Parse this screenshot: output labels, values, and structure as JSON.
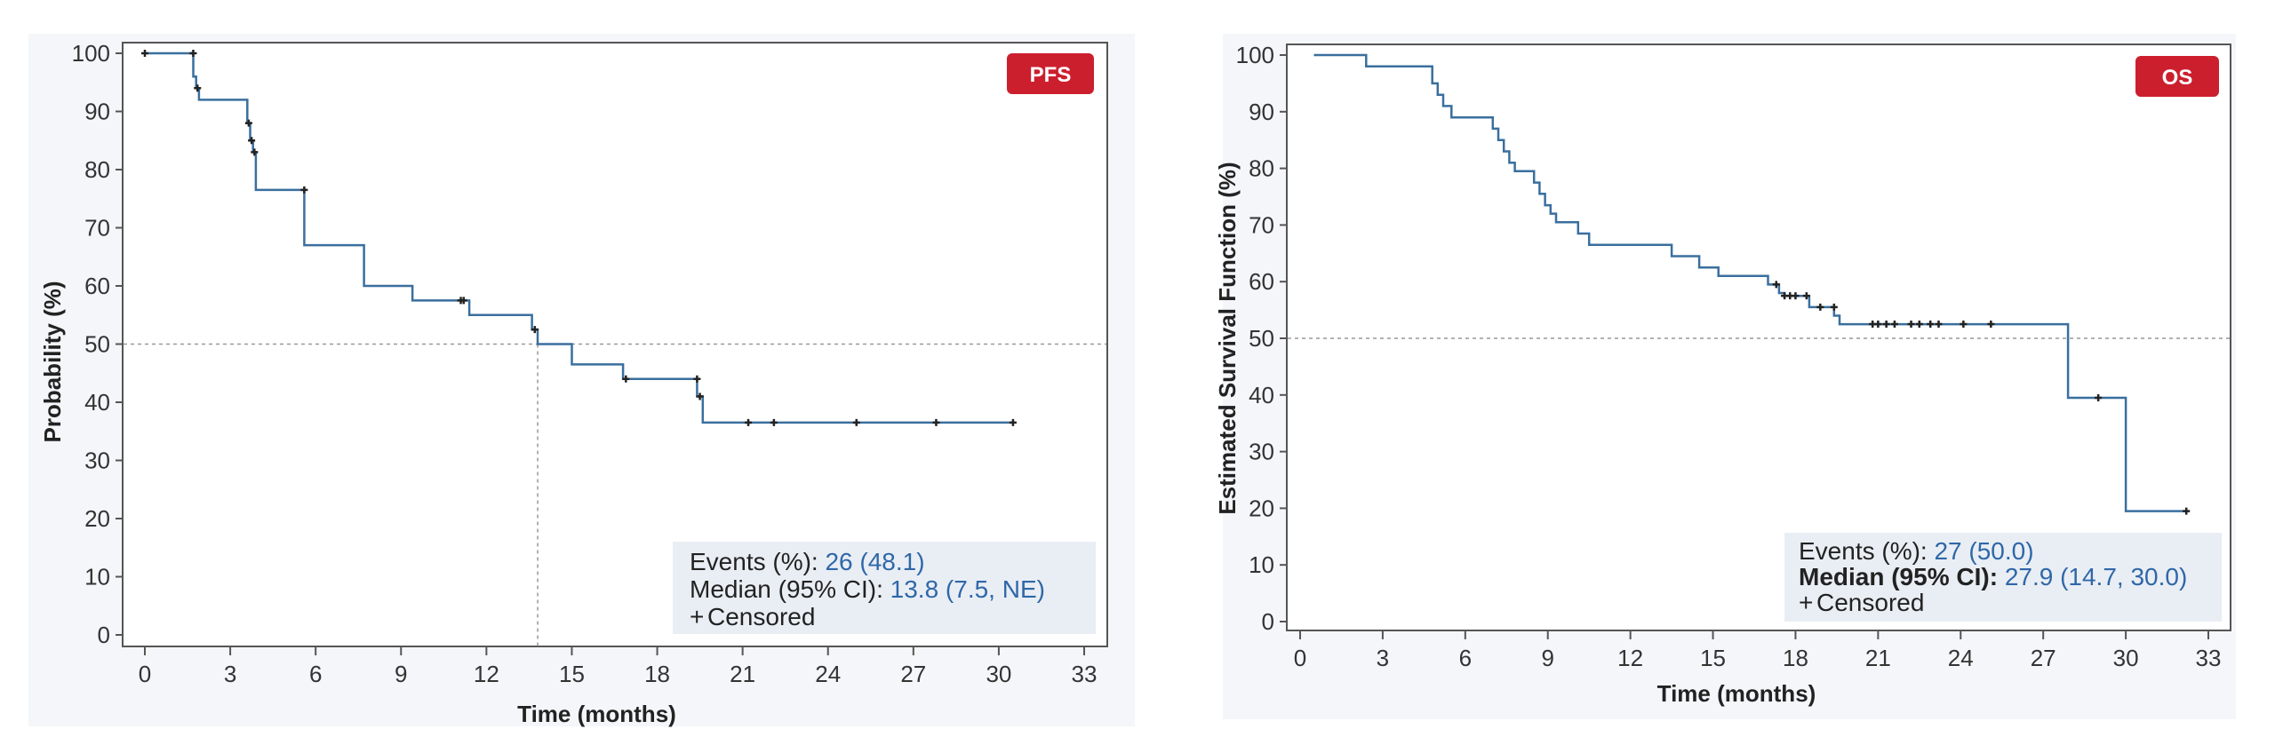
{
  "charts": [
    {
      "badge": "PFS",
      "events_label": "Events (%): ",
      "events_value": "26 (48.1)",
      "median_label": "Median (95% CI): ",
      "median_value": "13.8 (7.5, NE)",
      "censored_label": "Censored"
    },
    {
      "badge": "OS",
      "events_label": "Events (%): ",
      "events_value": "27 (50.0)",
      "median_label": "Median (95% CI): ",
      "median_value": "27.9 (14.7, 30.0)",
      "censored_label": "Censored"
    }
  ],
  "colors": {
    "curve": "#3a6f9e",
    "badge": "#cc1f2e",
    "panel_bg": "#f4f6f9",
    "legend_bg": "#e9eef4",
    "value_text": "#2f67a8"
  },
  "chart_data": [
    {
      "type": "line",
      "title": "",
      "xlabel": "Time (months)",
      "ylabel": "Probability (%)",
      "xlim": [
        0,
        33
      ],
      "ylim": [
        0,
        100
      ],
      "xticks": [
        0,
        3,
        6,
        9,
        12,
        15,
        18,
        21,
        24,
        27,
        30,
        33
      ],
      "yticks": [
        0,
        10,
        20,
        30,
        40,
        50,
        60,
        70,
        80,
        90,
        100
      ],
      "grid": false,
      "legend_position": "bottom-right",
      "reference_y": 50,
      "median_x": 13.8,
      "series": [
        {
          "steps": [
            [
              0,
              100
            ],
            [
              1.7,
              100
            ],
            [
              1.7,
              96
            ],
            [
              1.8,
              96
            ],
            [
              1.8,
              94
            ],
            [
              1.9,
              94
            ],
            [
              1.9,
              92
            ],
            [
              3.6,
              92
            ],
            [
              3.6,
              88
            ],
            [
              3.7,
              88
            ],
            [
              3.7,
              85
            ],
            [
              3.8,
              85
            ],
            [
              3.8,
              83
            ],
            [
              3.9,
              83
            ],
            [
              3.9,
              76.5
            ],
            [
              5.6,
              76.5
            ],
            [
              5.6,
              67
            ],
            [
              7.7,
              67
            ],
            [
              7.7,
              60
            ],
            [
              9.4,
              60
            ],
            [
              9.4,
              57.5
            ],
            [
              11.4,
              57.5
            ],
            [
              11.4,
              55
            ],
            [
              13.6,
              55
            ],
            [
              13.6,
              52.5
            ],
            [
              13.8,
              52.5
            ],
            [
              13.8,
              50
            ],
            [
              15.0,
              50
            ],
            [
              15.0,
              46.5
            ],
            [
              16.8,
              46.5
            ],
            [
              16.8,
              44
            ],
            [
              19.4,
              44
            ],
            [
              19.4,
              41
            ],
            [
              19.6,
              41
            ],
            [
              19.6,
              36.5
            ],
            [
              30.5,
              36.5
            ]
          ],
          "censored": [
            [
              0,
              100
            ],
            [
              1.7,
              100
            ],
            [
              1.85,
              94
            ],
            [
              3.65,
              88
            ],
            [
              3.75,
              85
            ],
            [
              3.85,
              83
            ],
            [
              5.6,
              76.5
            ],
            [
              11.1,
              57.5
            ],
            [
              11.2,
              57.5
            ],
            [
              13.7,
              52.5
            ],
            [
              16.9,
              44
            ],
            [
              19.4,
              44
            ],
            [
              19.5,
              41
            ],
            [
              21.2,
              36.5
            ],
            [
              22.1,
              36.5
            ],
            [
              25.0,
              36.5
            ],
            [
              27.8,
              36.5
            ],
            [
              30.5,
              36.5
            ]
          ]
        }
      ]
    },
    {
      "type": "line",
      "title": "",
      "xlabel": "Time (months)",
      "ylabel": "Estimated Survival Function (%)",
      "xlim": [
        0,
        33
      ],
      "ylim": [
        0,
        100
      ],
      "xticks": [
        0,
        3,
        6,
        9,
        12,
        15,
        18,
        21,
        24,
        27,
        30,
        33
      ],
      "yticks": [
        0,
        10,
        20,
        30,
        40,
        50,
        60,
        70,
        80,
        90,
        100
      ],
      "grid": false,
      "legend_position": "bottom-right",
      "reference_y": 50,
      "series": [
        {
          "steps": [
            [
              0.5,
              100
            ],
            [
              2.4,
              100
            ],
            [
              2.4,
              98
            ],
            [
              4.8,
              98
            ],
            [
              4.8,
              95
            ],
            [
              5.0,
              95
            ],
            [
              5.0,
              93
            ],
            [
              5.2,
              93
            ],
            [
              5.2,
              91
            ],
            [
              5.5,
              91
            ],
            [
              5.5,
              89
            ],
            [
              7.0,
              89
            ],
            [
              7.0,
              87
            ],
            [
              7.2,
              87
            ],
            [
              7.2,
              85
            ],
            [
              7.4,
              85
            ],
            [
              7.4,
              83
            ],
            [
              7.6,
              83
            ],
            [
              7.6,
              81
            ],
            [
              7.8,
              81
            ],
            [
              7.8,
              79.5
            ],
            [
              8.5,
              79.5
            ],
            [
              8.5,
              77.5
            ],
            [
              8.7,
              77.5
            ],
            [
              8.7,
              75.5
            ],
            [
              8.9,
              75.5
            ],
            [
              8.9,
              73.5
            ],
            [
              9.1,
              73.5
            ],
            [
              9.1,
              72
            ],
            [
              9.3,
              72
            ],
            [
              9.3,
              70.5
            ],
            [
              10.1,
              70.5
            ],
            [
              10.1,
              68.5
            ],
            [
              10.5,
              68.5
            ],
            [
              10.5,
              66.5
            ],
            [
              13.5,
              66.5
            ],
            [
              13.5,
              64.5
            ],
            [
              14.5,
              64.5
            ],
            [
              14.5,
              62.5
            ],
            [
              15.2,
              62.5
            ],
            [
              15.2,
              61
            ],
            [
              17.0,
              61
            ],
            [
              17.0,
              59.5
            ],
            [
              17.4,
              59.5
            ],
            [
              17.4,
              58
            ],
            [
              17.6,
              58
            ],
            [
              17.6,
              57.5
            ],
            [
              18.5,
              57.5
            ],
            [
              18.5,
              55.5
            ],
            [
              19.4,
              55.5
            ],
            [
              19.4,
              54
            ],
            [
              19.6,
              54
            ],
            [
              19.6,
              52.5
            ],
            [
              27.9,
              52.5
            ],
            [
              27.9,
              39.5
            ],
            [
              30.0,
              39.5
            ],
            [
              30.0,
              19.5
            ],
            [
              32.2,
              19.5
            ]
          ],
          "censored": [
            [
              17.3,
              59.5
            ],
            [
              17.6,
              57.5
            ],
            [
              17.8,
              57.5
            ],
            [
              18.0,
              57.5
            ],
            [
              18.4,
              57.5
            ],
            [
              18.9,
              55.5
            ],
            [
              19.4,
              55.5
            ],
            [
              20.8,
              52.5
            ],
            [
              21.0,
              52.5
            ],
            [
              21.3,
              52.5
            ],
            [
              21.6,
              52.5
            ],
            [
              22.2,
              52.5
            ],
            [
              22.5,
              52.5
            ],
            [
              22.9,
              52.5
            ],
            [
              23.2,
              52.5
            ],
            [
              24.1,
              52.5
            ],
            [
              25.1,
              52.5
            ],
            [
              29.0,
              39.5
            ],
            [
              32.2,
              19.5
            ]
          ]
        }
      ]
    }
  ]
}
